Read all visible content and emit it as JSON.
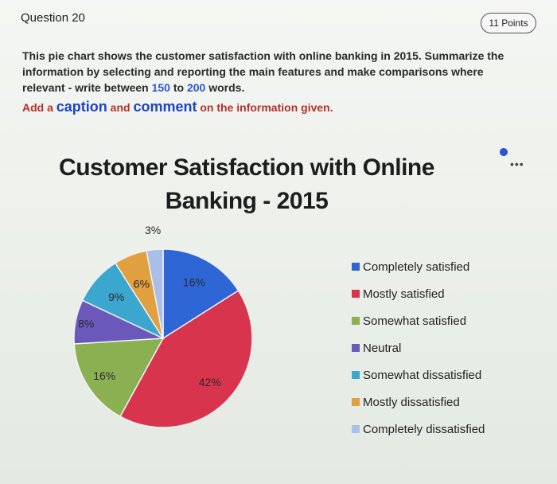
{
  "header": {
    "question": "Question 20",
    "points": "11 Points"
  },
  "prompt": {
    "part1": "This pie chart shows the customer satisfaction with online banking in 2015. Summarize the information by selecting and reporting the main features and make comparisons where relevant - write between ",
    "min_words": "150",
    "to_word": " to ",
    "max_words": "200",
    "part2": " words."
  },
  "instruction": {
    "add": "Add a ",
    "caption": "caption",
    "and": " and ",
    "comment": "comment",
    "rest": " on the information given."
  },
  "chart_data": {
    "type": "pie",
    "title": "Customer Satisfaction with Online Banking - 2015",
    "title_line1": "Customer Satisfaction with Online",
    "title_line2": "Banking - 2015",
    "categories": [
      "Completely satisfied",
      "Mostly satisfied",
      "Somewhat satisfied",
      "Neutral",
      "Somewhat dissatisfied",
      "Mostly dissatisfied",
      "Completely dissatisfied"
    ],
    "values": [
      16,
      42,
      16,
      8,
      9,
      6,
      3
    ],
    "labels": [
      "16%",
      "42%",
      "16%",
      "8%",
      "9%",
      "6%",
      "3%"
    ],
    "colors": [
      "#2e66d6",
      "#d8344e",
      "#8bb052",
      "#6b58bb",
      "#3ba7cf",
      "#e0a040",
      "#a9bfe8"
    ],
    "legend_position": "right"
  }
}
